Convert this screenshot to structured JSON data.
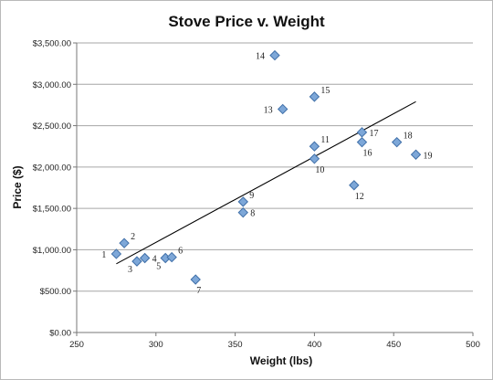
{
  "chart_data": {
    "type": "scatter",
    "title": "Stove Price v. Weight",
    "xlabel": "Weight (lbs)",
    "ylabel": "Price ($)",
    "xlim": [
      250,
      500
    ],
    "ylim": [
      0,
      3500
    ],
    "x_ticks": [
      250,
      300,
      350,
      400,
      450,
      500
    ],
    "x_tick_labels": [
      "250",
      "300",
      "350",
      "400",
      "450",
      "500"
    ],
    "y_ticks": [
      0,
      500,
      1000,
      1500,
      2000,
      2500,
      3000,
      3500
    ],
    "y_tick_labels": [
      "$0.00",
      "$500.00",
      "$1,000.00",
      "$1,500.00",
      "$2,000.00",
      "$2,500.00",
      "$3,000.00",
      "$3,500.00"
    ],
    "grid": "horizontal",
    "marker_color": "#7da7d8",
    "marker_edge_color": "#3f6fa8",
    "trendline": {
      "type": "linear",
      "from": [
        275,
        830
      ],
      "to": [
        464,
        2790
      ]
    },
    "points": [
      {
        "label": "1",
        "x": 275,
        "y": 950,
        "label_pos": "left"
      },
      {
        "label": "2",
        "x": 280,
        "y": 1080,
        "label_pos": "upper-right"
      },
      {
        "label": "3",
        "x": 288,
        "y": 860,
        "label_pos": "lower-left"
      },
      {
        "label": "4",
        "x": 293,
        "y": 900,
        "label_pos": "right"
      },
      {
        "label": "5",
        "x": 306,
        "y": 900,
        "label_pos": "lower-left"
      },
      {
        "label": "6",
        "x": 310,
        "y": 910,
        "label_pos": "upper-right"
      },
      {
        "label": "7",
        "x": 325,
        "y": 640,
        "label_pos": "below"
      },
      {
        "label": "8",
        "x": 355,
        "y": 1450,
        "label_pos": "right"
      },
      {
        "label": "9",
        "x": 355,
        "y": 1580,
        "label_pos": "upper-right"
      },
      {
        "label": "10",
        "x": 400,
        "y": 2100,
        "label_pos": "below"
      },
      {
        "label": "11",
        "x": 400,
        "y": 2250,
        "label_pos": "upper-right"
      },
      {
        "label": "12",
        "x": 425,
        "y": 1780,
        "label_pos": "below"
      },
      {
        "label": "13",
        "x": 380,
        "y": 2700,
        "label_pos": "left"
      },
      {
        "label": "14",
        "x": 375,
        "y": 3350,
        "label_pos": "left"
      },
      {
        "label": "15",
        "x": 400,
        "y": 2850,
        "label_pos": "upper-right"
      },
      {
        "label": "16",
        "x": 430,
        "y": 2300,
        "label_pos": "below"
      },
      {
        "label": "17",
        "x": 430,
        "y": 2420,
        "label_pos": "right"
      },
      {
        "label": "18",
        "x": 452,
        "y": 2300,
        "label_pos": "upper-right"
      },
      {
        "label": "19",
        "x": 464,
        "y": 2150,
        "label_pos": "right"
      }
    ]
  }
}
